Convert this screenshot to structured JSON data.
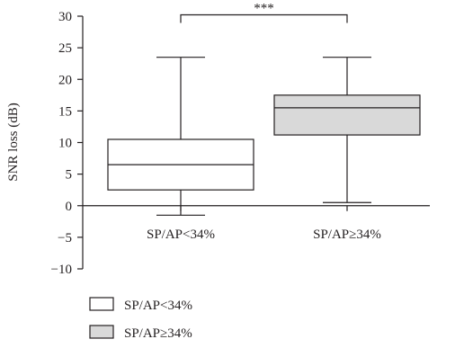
{
  "chart_data": {
    "type": "box",
    "ylabel": "SNR loss (dB)",
    "ylim": [
      -10,
      30
    ],
    "yticks": [
      -10,
      -5,
      0,
      5,
      10,
      15,
      20,
      25,
      30
    ],
    "yticks_labels": [
      "−10",
      "−5",
      "0",
      "5",
      "10",
      "15",
      "20",
      "25",
      "30"
    ],
    "categories": [
      "SP/AP<34%",
      "SP/AP≥34%"
    ],
    "boxes": [
      {
        "name": "SP/AP<34%",
        "min": -1.5,
        "q1": 2.5,
        "median": 6.5,
        "q3": 10.5,
        "max": 23.5,
        "color": "#ffffff"
      },
      {
        "name": "SP/AP≥34%",
        "min": 0.5,
        "q1": 11.2,
        "median": 15.5,
        "q3": 17.5,
        "max": 23.5,
        "color": "#d9d9d9"
      }
    ],
    "significance": {
      "between": [
        0,
        1
      ],
      "label": "***",
      "y": 29.5
    },
    "legend": {
      "position": "bottom-left",
      "entries": [
        {
          "label": "SP/AP<34%",
          "color": "#ffffff"
        },
        {
          "label": "SP/AP≥34%",
          "color": "#d9d9d9"
        }
      ]
    },
    "grid": false
  }
}
